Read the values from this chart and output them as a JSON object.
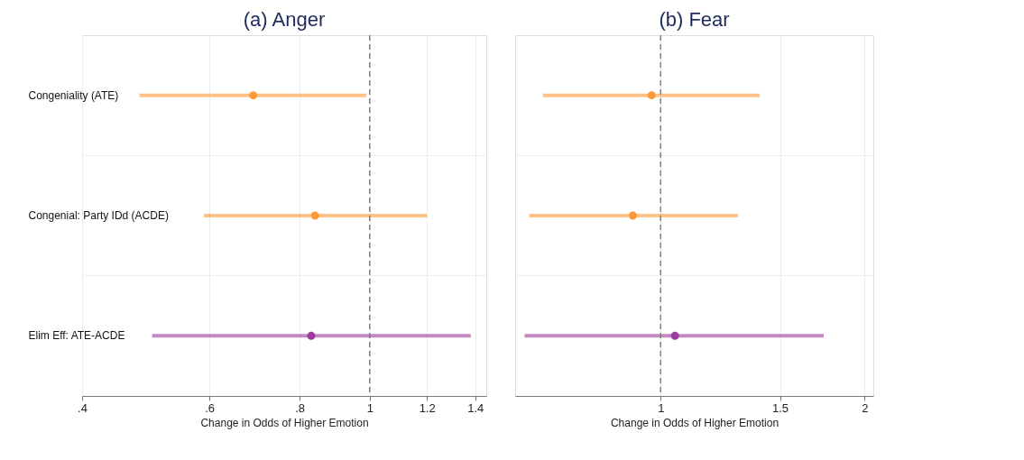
{
  "chart_data": [
    {
      "type": "scatter",
      "title": "(a) Anger",
      "xlabel": "Change in Odds of Higher Emotion",
      "orientation": "horizontal",
      "marker": "circle",
      "log": "x",
      "grid": true,
      "categories": [
        "Congeniality (ATE)",
        "Congenial: Party IDd (ACDE)",
        "Elim Eff: ATE-ACDE"
      ],
      "values": [
        0.69,
        0.84,
        0.83
      ],
      "errors": [
        [
          0.48,
          0.99
        ],
        [
          0.59,
          1.2
        ],
        [
          0.5,
          1.38
        ]
      ],
      "colors": [
        "#fd9a38",
        "#fd9a38",
        "#9b3b9b"
      ],
      "xlim": [
        0.4,
        1.45
      ],
      "xticks": [
        {
          "value": 0.4,
          "label": ".4"
        },
        {
          "value": 0.6,
          "label": ".6"
        },
        {
          "value": 0.8,
          "label": ".8"
        },
        1,
        1.2,
        1.4
      ],
      "ref_lines": [
        {
          "axis": "x",
          "value": 1,
          "color": "#808080",
          "line_style": "dashed"
        }
      ]
    },
    {
      "type": "scatter",
      "title": "(b) Fear",
      "xlabel": "Change in Odds of Higher Emotion",
      "orientation": "horizontal",
      "marker": "circle",
      "log": "x",
      "grid": true,
      "tick_labels": "x",
      "categories": [
        null,
        null,
        null
      ],
      "values": [
        0.97,
        0.91,
        1.05
      ],
      "errors": [
        [
          0.67,
          1.4
        ],
        [
          0.64,
          1.3
        ],
        [
          0.63,
          1.74
        ]
      ],
      "colors": [
        "#fd9a38",
        "#fd9a38",
        "#9b3b9b"
      ],
      "xlim": [
        0.61,
        2.06
      ],
      "xticks": [
        1,
        1.5,
        2
      ],
      "ref_lines": [
        {
          "axis": "x",
          "value": 1,
          "color": "#808080",
          "line_style": "dashed"
        }
      ]
    }
  ]
}
